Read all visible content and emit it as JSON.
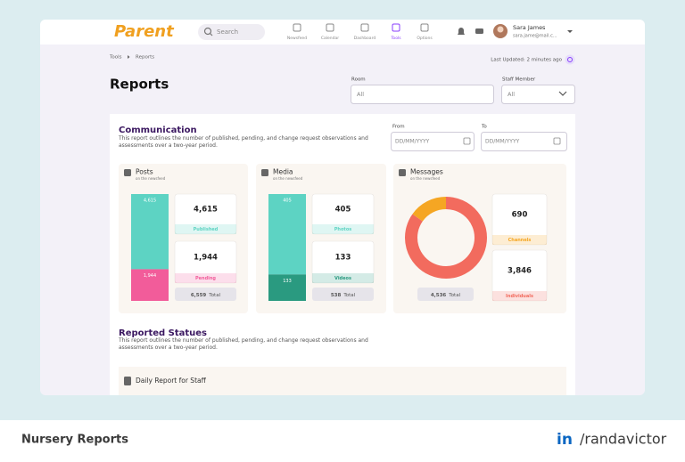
{
  "header": {
    "logo": "Parent",
    "search": "Search",
    "nav": [
      "Newsfeed",
      "Calendar",
      "Dashboard",
      "Tools",
      "Options"
    ],
    "user": {
      "name": "Sara James",
      "email": "sara.jame@mail.c..."
    }
  },
  "breadcrumb": [
    "Tools",
    "Reports"
  ],
  "last_updated": "Last Updated: 2 minutes ago",
  "page_title": "Reports",
  "filters": [
    {
      "label": "Room",
      "value": "All"
    },
    {
      "label": "Staff Member",
      "value": "All"
    }
  ],
  "communication": {
    "title": "Communication",
    "description": "This report outlines the number of published, pending, and change request observations and assessments over a two-year period.",
    "date_range": [
      {
        "label": "From",
        "placeholder": "DD/MM/YYYY"
      },
      {
        "label": "To",
        "placeholder": "DD/MM/YYYY"
      }
    ],
    "cards": [
      {
        "title": "Posts",
        "subtitle": "on the newsfeed",
        "display": "stacked-bar",
        "items": [
          {
            "value": 4615,
            "label": "4,615",
            "name": "Published",
            "color": "#5dd3c3"
          },
          {
            "value": 1944,
            "label": "1,944",
            "name": "Pending",
            "color": "#f25c9a"
          }
        ],
        "total": {
          "value": 6559,
          "label": "6,559",
          "name": "Total"
        }
      },
      {
        "title": "Media",
        "subtitle": "on the newsfeed",
        "display": "stacked-bar",
        "items": [
          {
            "value": 405,
            "label": "405",
            "name": "Photos",
            "color": "#5dd3c3"
          },
          {
            "value": 133,
            "label": "133",
            "name": "Videos",
            "color": "#2a9a80"
          }
        ],
        "total": {
          "value": 538,
          "label": "538",
          "name": "Total"
        }
      },
      {
        "title": "Messages",
        "subtitle": "on the newsfeed",
        "display": "donut",
        "items": [
          {
            "value": 690,
            "label": "690",
            "name": "Channels",
            "color": "#f5a623"
          },
          {
            "value": 3846,
            "label": "3,846",
            "name": "Individuals",
            "color": "#f26b5e"
          }
        ],
        "total": {
          "value": 4536,
          "label": "4,536",
          "name": "Total"
        }
      }
    ]
  },
  "reported_statues": {
    "title": "Reported Statues",
    "description": "This report outlines the number of published, pending, and change request observations and assessments over a two-year period.",
    "report": "Daily Report for Staff"
  },
  "footer": {
    "title": "Nursery Reports",
    "social": "in",
    "handle": "/randavictor"
  }
}
